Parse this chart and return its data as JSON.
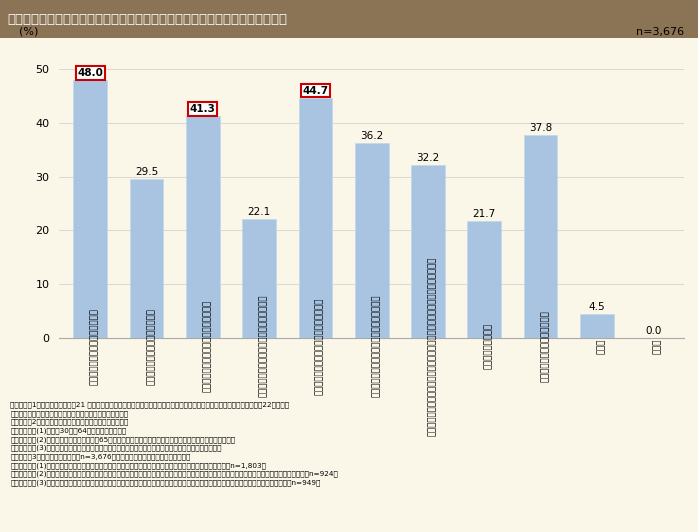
{
  "title": "第１－３－９図　仕事と介護の両立促進のために必要な地域や社会による支援",
  "n_label": "n=3,676",
  "ylabel": "(%)",
  "values": [
    48.0,
    29.5,
    41.3,
    22.1,
    44.7,
    36.2,
    32.2,
    21.7,
    37.8,
    4.5,
    0.0
  ],
  "highlighted": [
    0,
    2,
    4
  ],
  "bar_color": "#a8c4e0",
  "bar_width": 0.6,
  "ylim": [
    0,
    55
  ],
  "yticks": [
    0,
    10,
    20,
    30,
    40,
    50
  ],
  "labels": [
    "介護に関する情報の普及及び発発",
    "介護に関する技術的な相談の充実",
    "精神面での負担軽減のための相談の充実",
    "介護者がお互いに交流できる場の提供・情報",
    "緊急時に対応できるショートステイの拡大",
    "早朝や夜間も対応できるデイサービスの拡大",
    "状況に応じて、テイサービスからショートステイに移行できるサービスの拡大",
    "配食サービスの拡大",
    "介護関連施設のサービスの拡大",
    "その他",
    "無回答"
  ],
  "background_color": "#faf6e8",
  "title_bg_color": "#8b7355",
  "title_text_color": "#ffffff",
  "box_color": "#cc0000",
  "footnote_lines": [
    "（備考）　1．厚生労働省「平成21 年度厚生労働省委託事業　仕事と介護の両立に関する実態把握のための調査研究」（平成22年３月）",
    "　　　　　　（みずほ情報総研株式会社に委託）より作成。",
    "　　　　　2．調査対象は、以下３条件を全て満たした者。",
    "　　　　　　(1)全国の30歳～64歳までの男性・女性",
    "　　　　　　(2)本人または配偶者の家族に65歳以上の何らかの介護が必要な家族がいる（居住地は問わない）",
    "　　　　　　(3)本人がその家族の介護を行っている（自らが「介護を行っている」と考えていればよい）",
    "　　　　　3．本調査では対象者（n=3,676）を以下の３グループに分類している。",
    "　　　　　　(1)当該家族の介護を始めて以降、仕事を辞めたことがない者：「在職者グループ（継続組）」（n=1,803）",
    "　　　　　　(2)当該家族の介護をきっかけとしておおむね過去５年以内に仕事を辞め、現在は仕事に就いている者：「在職者グループ（転職組）」（n=924）",
    "　　　　　　(3)当該家族の介護をきっかけとしておおむね過去５年以内に仕事を辞め、現在は仕事に就いていない者：「離職者グループ」（n=949）"
  ]
}
